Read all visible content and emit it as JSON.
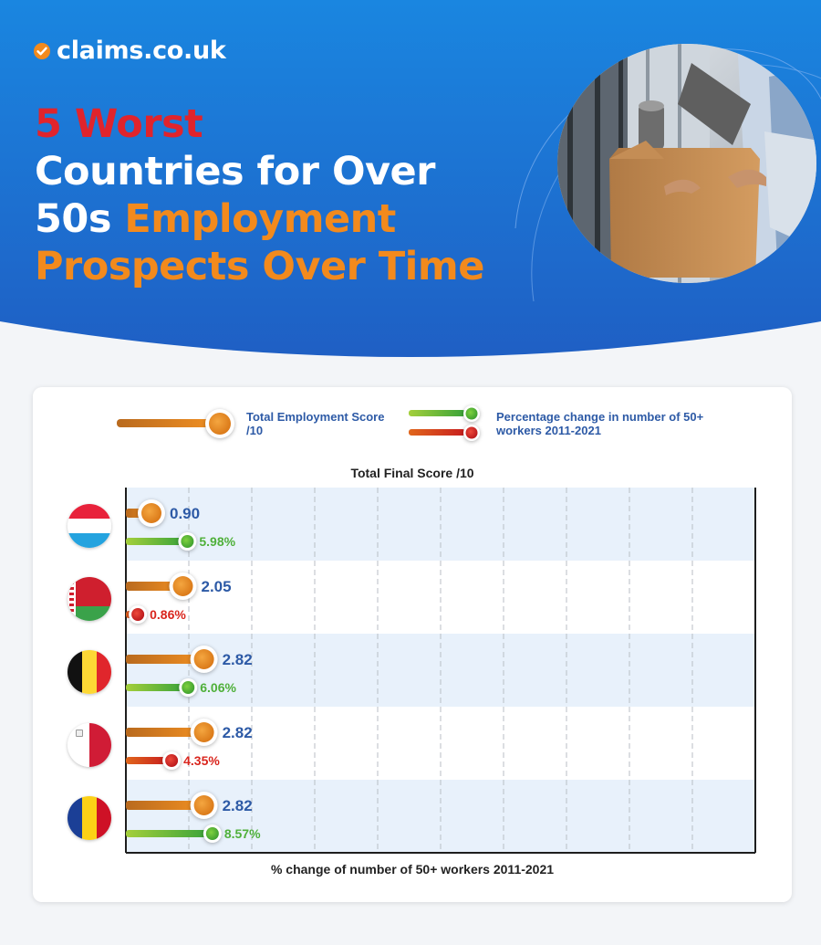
{
  "brand": {
    "name": "claims.co.uk"
  },
  "title": {
    "part1": "5 Worst",
    "part2": "Countries for Over",
    "part3": "50s",
    "part4": "Employment",
    "part5": "Prospects Over Time"
  },
  "legend": {
    "score": "Total Employment Score /10",
    "change": "Percentage change in number of 50+ workers 2011-2021"
  },
  "colors": {
    "header_blue": "#1f6fd1",
    "title_red": "#e0242c",
    "title_orange": "#f28a1d",
    "score_bar": "#e8871e",
    "positive": "#4fb03a",
    "negative": "#d9251d",
    "value_blue": "#2d5aa6",
    "band": "#e8f1fb"
  },
  "chart_data": {
    "type": "bar",
    "title": "Total Final Score /10",
    "xlabel": "% change of number of 50+ workers 2011-2021",
    "grid": true,
    "categories": [
      "Luxembourg",
      "Belarus",
      "Belgium",
      "Malta",
      "Romania"
    ],
    "series": [
      {
        "name": "Total Employment Score /10",
        "values": [
          0.9,
          2.05,
          2.82,
          2.82,
          2.82
        ],
        "labels": [
          "0.90",
          "2.05",
          "2.82",
          "2.82",
          "2.82"
        ]
      },
      {
        "name": "Percentage change in number of 50+ workers 2011-2021",
        "values": [
          5.98,
          -0.86,
          6.06,
          -4.35,
          8.57
        ],
        "labels": [
          "5.98%",
          "0.86%",
          "6.06%",
          "4.35%",
          "8.57%"
        ]
      }
    ],
    "flag_icons": [
      "luxembourg-flag-icon",
      "belarus-flag-icon",
      "belgium-flag-icon",
      "malta-flag-icon",
      "romania-flag-icon"
    ]
  }
}
